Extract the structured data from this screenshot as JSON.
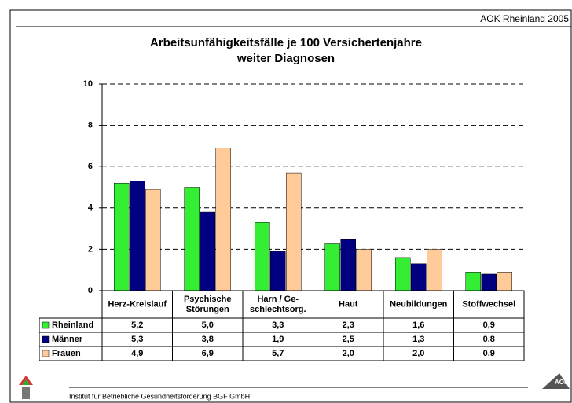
{
  "header": {
    "source": "AOK Rheinland 2005"
  },
  "footer": {
    "text": "Institut für Betriebliche Gesundheitsförderung BGF GmbH"
  },
  "chart_data": {
    "type": "bar",
    "title": [
      "Arbeitsunfähigkeitsfälle je 100 Versichertenjahre",
      "weiter Diagnosen"
    ],
    "categories": [
      "Herz-Kreislauf",
      "Psychische\nStörungen",
      "Harn / Ge-\nschlechtsorg.",
      "Haut",
      "Neubildungen",
      "Stoffwechsel"
    ],
    "series": [
      {
        "name": "Rheinland",
        "color": "#33ee33",
        "values": [
          5.2,
          5.0,
          3.3,
          2.3,
          1.6,
          0.9
        ],
        "value_labels": [
          "5,2",
          "5,0",
          "3,3",
          "2,3",
          "1,6",
          "0,9"
        ]
      },
      {
        "name": "Männer",
        "color": "#000080",
        "values": [
          5.3,
          3.8,
          1.9,
          2.5,
          1.3,
          0.8
        ],
        "value_labels": [
          "5,3",
          "3,8",
          "1,9",
          "2,5",
          "1,3",
          "0,8"
        ]
      },
      {
        "name": "Frauen",
        "color": "#ffcc99",
        "values": [
          4.9,
          6.9,
          5.7,
          2.0,
          2.0,
          0.9
        ],
        "value_labels": [
          "4,9",
          "6,9",
          "5,7",
          "2,0",
          "2,0",
          "0,9"
        ]
      }
    ],
    "ylim": [
      0,
      10
    ],
    "yticks": [
      0,
      2,
      4,
      6,
      8,
      10
    ],
    "grid": true
  }
}
